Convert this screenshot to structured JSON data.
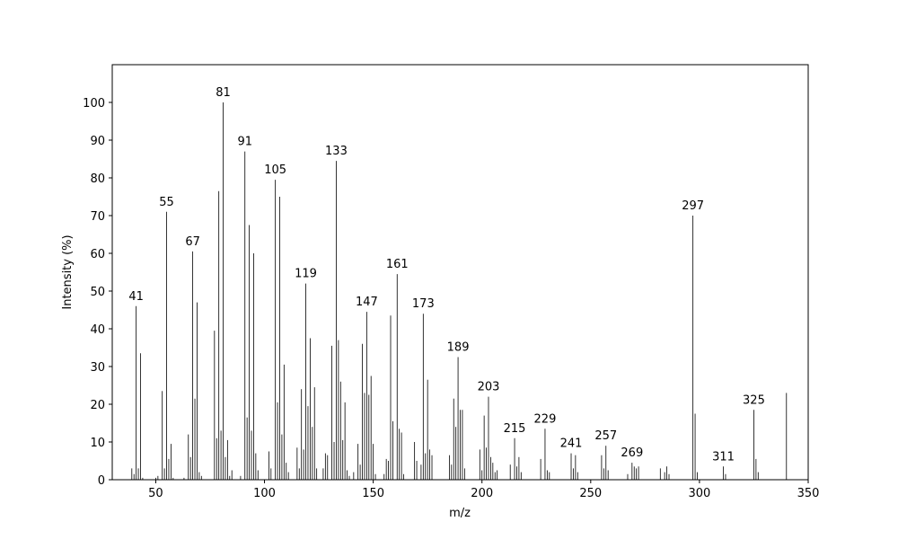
{
  "chart_data": {
    "type": "stick",
    "x_label": "m/z",
    "y_label": "Intensity (%)",
    "color": "#000000",
    "x": [
      39,
      40,
      41,
      42,
      43,
      44,
      50,
      51,
      53,
      54,
      55,
      56,
      57,
      58,
      63,
      65,
      66,
      67,
      68,
      69,
      70,
      71,
      77,
      78,
      79,
      80,
      81,
      82,
      83,
      84,
      85,
      89,
      91,
      92,
      93,
      94,
      95,
      96,
      97,
      102,
      103,
      105,
      106,
      107,
      108,
      109,
      110,
      111,
      115,
      116,
      117,
      118,
      119,
      120,
      121,
      122,
      123,
      124,
      127,
      128,
      129,
      131,
      132,
      133,
      134,
      135,
      136,
      137,
      138,
      139,
      141,
      143,
      144,
      145,
      146,
      147,
      148,
      149,
      150,
      151,
      155,
      156,
      157,
      158,
      159,
      161,
      162,
      163,
      164,
      169,
      170,
      172,
      173,
      174,
      175,
      176,
      177,
      185,
      186,
      187,
      188,
      189,
      190,
      191,
      192,
      199,
      200,
      201,
      202,
      203,
      204,
      205,
      206,
      207,
      213,
      215,
      216,
      217,
      218,
      227,
      229,
      230,
      231,
      241,
      242,
      243,
      244,
      255,
      256,
      257,
      258,
      267,
      269,
      270,
      271,
      272,
      282,
      284,
      285,
      286,
      297,
      298,
      299,
      311,
      312,
      325,
      326,
      327,
      340
    ],
    "values": [
      3,
      1.5,
      46,
      3,
      33.5,
      0.5,
      0.5,
      1,
      23.5,
      3,
      71,
      5.5,
      9.5,
      0.5,
      0.5,
      12,
      6,
      60.5,
      21.5,
      47,
      2,
      1,
      39.5,
      11,
      76.5,
      13,
      100,
      6,
      10.5,
      1,
      2.5,
      1,
      87,
      16.5,
      67.5,
      13,
      60,
      7,
      2.5,
      7.5,
      3,
      79.5,
      20.5,
      75,
      12,
      30.5,
      4.5,
      2,
      8.5,
      3,
      24,
      8,
      52,
      19.5,
      37.5,
      14,
      24.5,
      3,
      3,
      7,
      6.5,
      35.5,
      10,
      84.5,
      37,
      26,
      10.5,
      20.5,
      2.5,
      1,
      2,
      9.5,
      4,
      36,
      23,
      44.5,
      22.5,
      27.5,
      9.5,
      1.5,
      1.5,
      5.5,
      5,
      43.5,
      15.5,
      54.5,
      13.5,
      12.5,
      1.5,
      10,
      5,
      4,
      44,
      7,
      26.5,
      8,
      6.5,
      6.5,
      4,
      21.5,
      14,
      32.5,
      18.5,
      18.5,
      3,
      8,
      2.5,
      17,
      8.5,
      22,
      6,
      4.5,
      2,
      2.5,
      4,
      11,
      3.5,
      6,
      2,
      5.5,
      13.5,
      2.5,
      2,
      7,
      3,
      6.5,
      2,
      6.5,
      3,
      9,
      2.5,
      1.5,
      4.5,
      3.5,
      3,
      3.5,
      3,
      2,
      3.5,
      1.5,
      70,
      17.5,
      2,
      3.5,
      1.5,
      18.5,
      5.5,
      2,
      23
    ],
    "peak_labels": [
      41,
      55,
      67,
      81,
      91,
      105,
      119,
      133,
      147,
      161,
      173,
      189,
      203,
      215,
      229,
      241,
      257,
      269,
      297,
      311,
      325
    ],
    "xlim": [
      30,
      350
    ],
    "xticks": [
      50,
      100,
      150,
      200,
      250,
      300,
      350
    ],
    "ylim": [
      0,
      110
    ],
    "yticks": [
      0,
      10,
      20,
      30,
      40,
      50,
      60,
      70,
      80,
      90,
      100
    ]
  }
}
